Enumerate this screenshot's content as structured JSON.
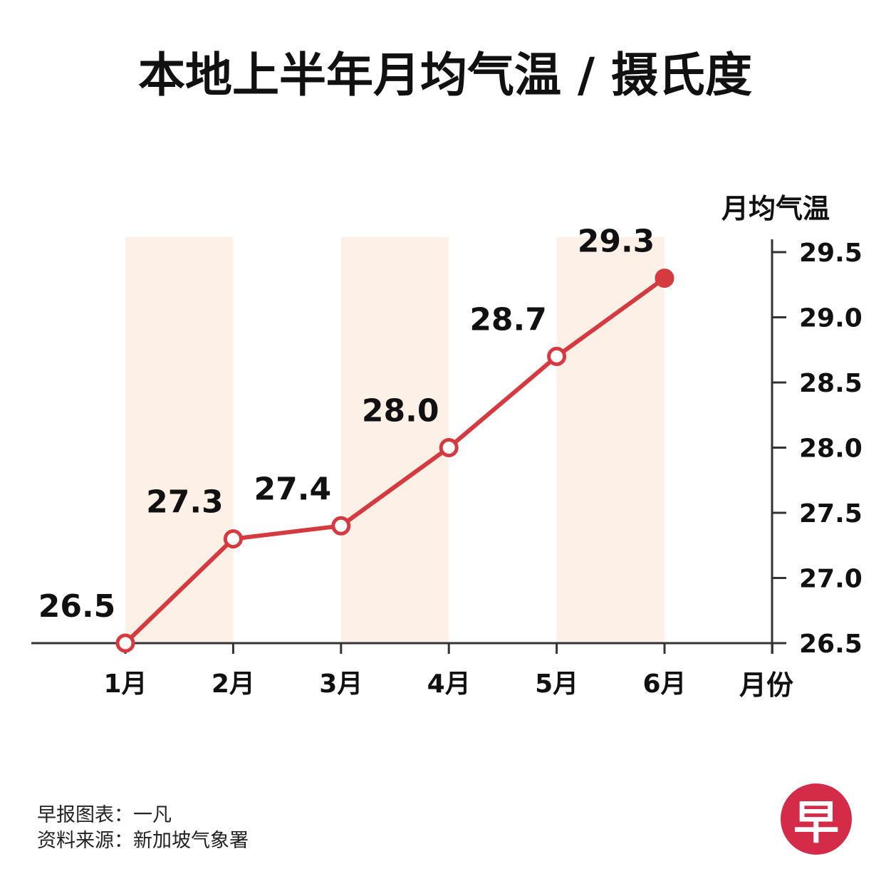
{
  "chart_data": {
    "type": "line",
    "title": "本地上半年月均气温 / 摄氏度",
    "ylabel": "月均气温",
    "xlabel": "月份",
    "categories": [
      "1月",
      "2月",
      "3月",
      "4月",
      "5月",
      "6月"
    ],
    "series": [
      {
        "values": [
          26.5,
          27.3,
          27.4,
          28.0,
          28.7,
          29.3
        ]
      }
    ],
    "data_labels": [
      "26.5",
      "27.3",
      "27.4",
      "28.0",
      "28.7",
      "29.3"
    ],
    "ylim": [
      26.5,
      29.5
    ],
    "y_ticks": [
      "26.5",
      "27.0",
      "27.5",
      "28.0",
      "28.5",
      "29.0",
      "29.5"
    ],
    "y_axis_side": "right",
    "grid": false,
    "shaded_bands_on": [
      "1月",
      "3月",
      "5月"
    ]
  },
  "colors": {
    "line": "#d43a3f",
    "band": "#fdf0e6",
    "axis": "#333333",
    "logo": "#d42c48"
  },
  "credits": {
    "chart_by": "早报图表：一凡",
    "source": "资料来源：新加坡气象署"
  },
  "logo": {
    "text": "早"
  }
}
